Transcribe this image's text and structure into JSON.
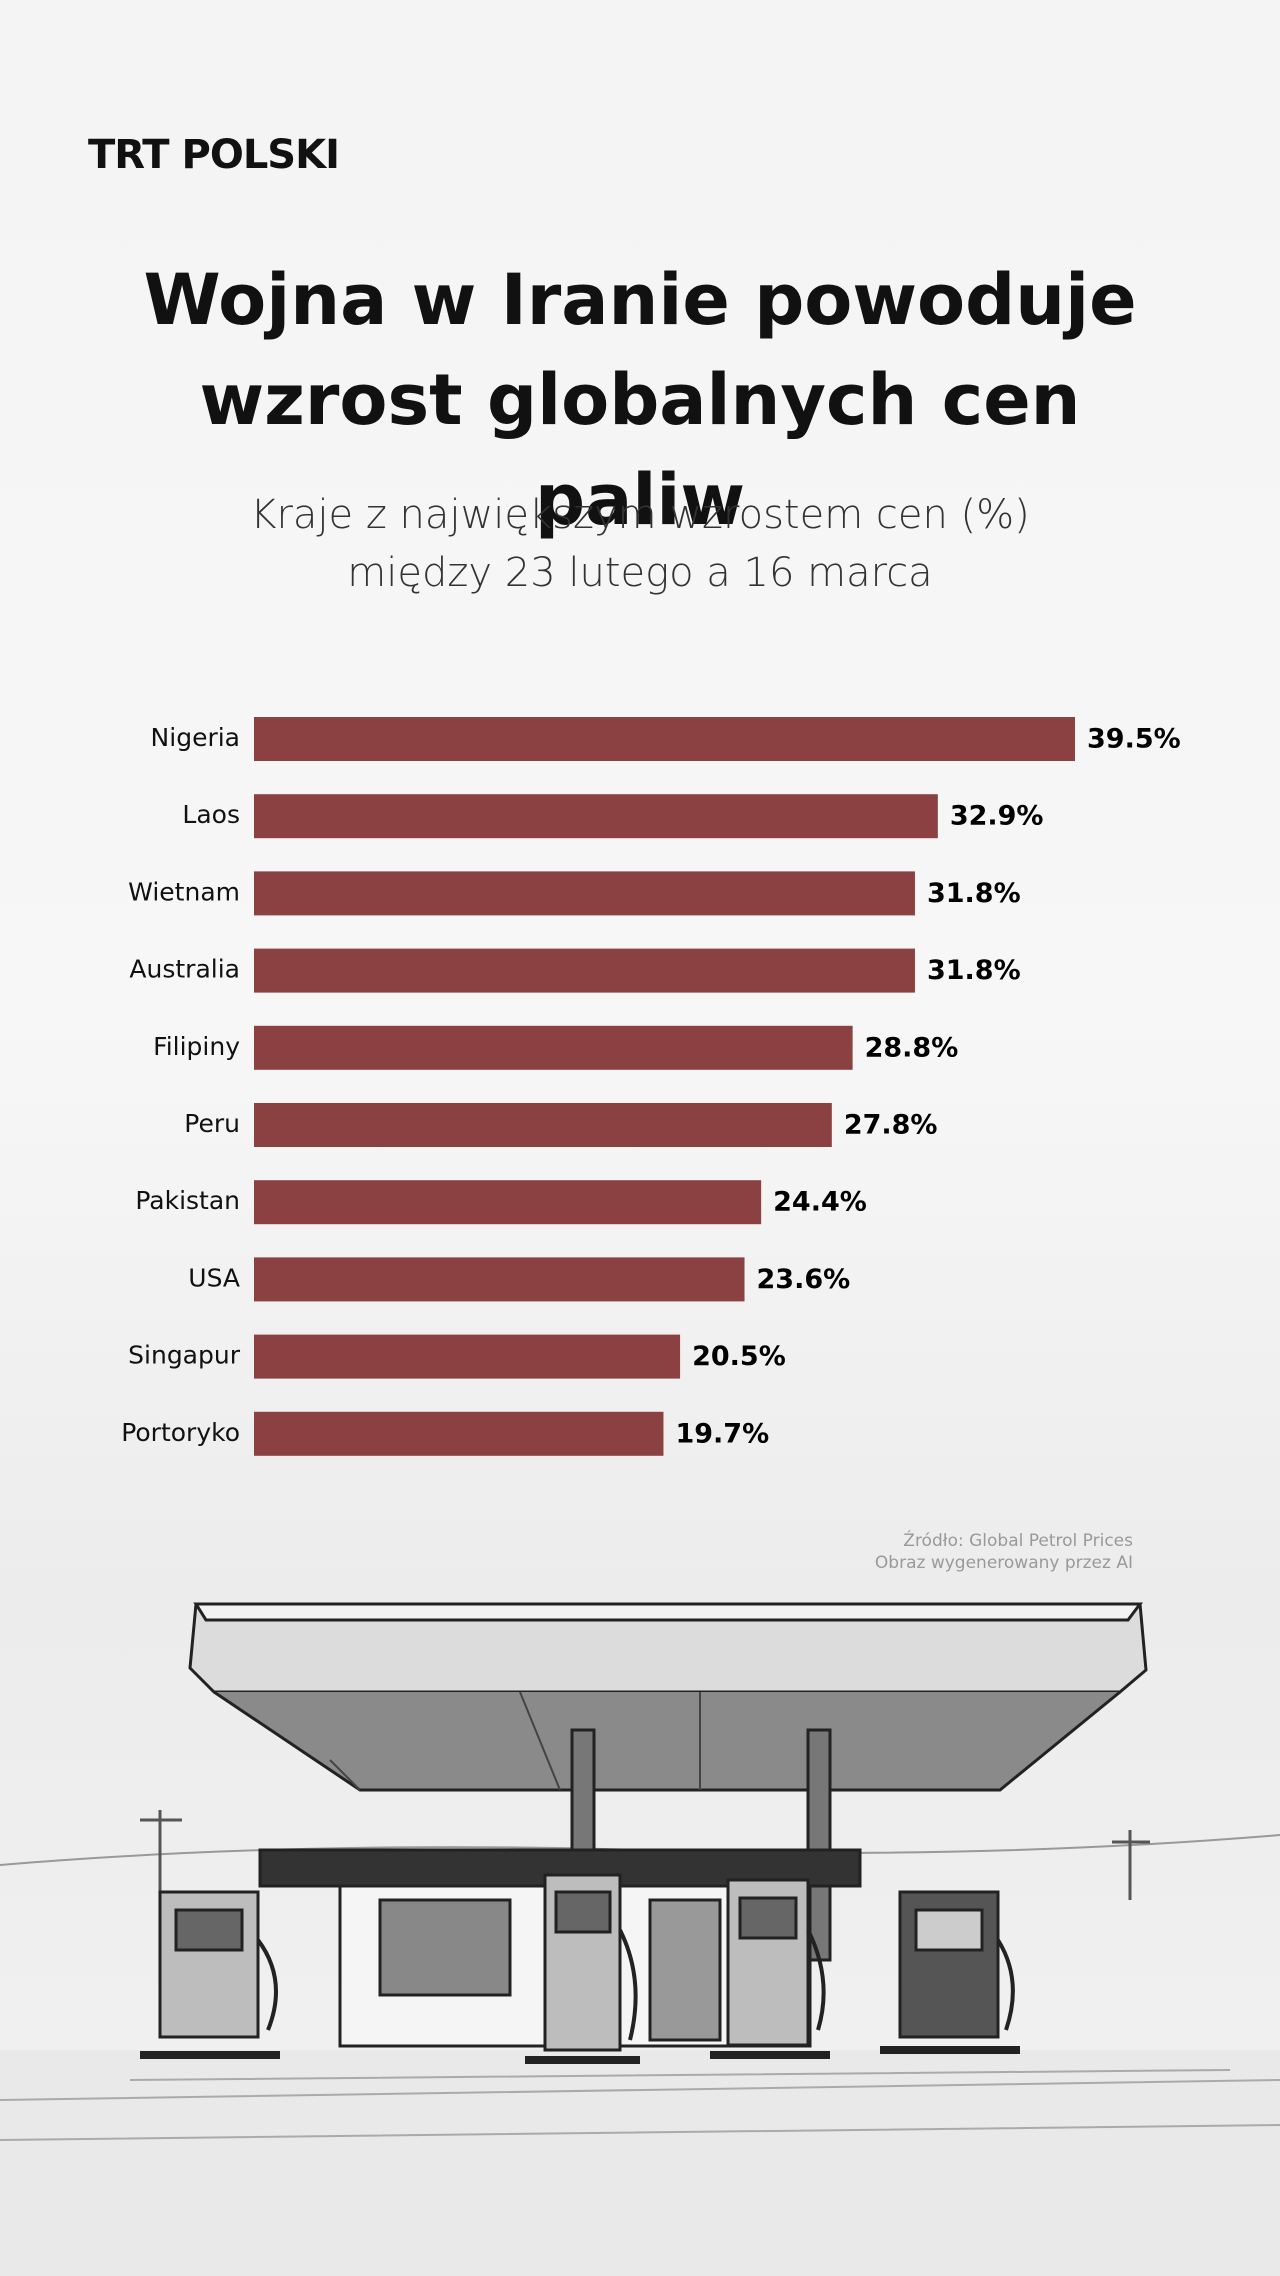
{
  "logo": "TRT POLSKI",
  "source": "Źródło: Global Petrol Prices",
  "image_credit": "Obraz wygenerowany przez AI",
  "chart_data": {
    "type": "bar",
    "orientation": "horizontal",
    "title": "Wojna w Iranie powoduje wzrost globalnych cen paliw",
    "subtitle": "Kraje z największym wzrostem cen (%) między 23 lutego a 16 marca",
    "categories": [
      "Nigeria",
      "Laos",
      "Wietnam",
      "Australia",
      "Filipiny",
      "Peru",
      "Pakistan",
      "USA",
      "Singapur",
      "Portoryko"
    ],
    "values": [
      39.5,
      32.9,
      31.8,
      31.8,
      28.8,
      27.8,
      24.4,
      23.6,
      20.5,
      19.7
    ],
    "value_labels": [
      "39.5%",
      "32.9%",
      "31.8%",
      "31.8%",
      "28.8%",
      "27.8%",
      "24.4%",
      "23.6%",
      "20.5%",
      "19.7%"
    ],
    "color": "#8b4141"
  }
}
